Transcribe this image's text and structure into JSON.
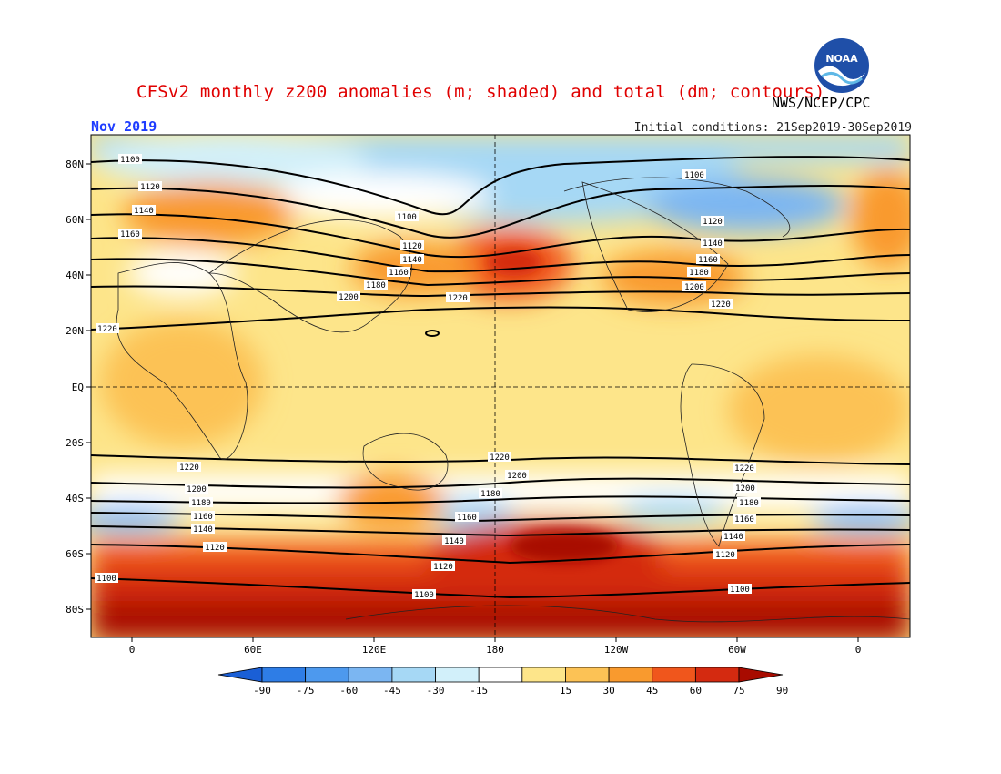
{
  "header": {
    "title": "CFSv2 monthly z200 anomalies (m; shaded) and total (dm; contours)",
    "agency": "NWS/NCEP/CPC",
    "valid_month": "Nov 2019",
    "initial_conditions": "Initial conditions: 21Sep2019-30Sep2019"
  },
  "logo": {
    "text": "NOAA",
    "icon": "noaa-logo-icon"
  },
  "map": {
    "lat_labels": [
      "80N",
      "60N",
      "40N",
      "20N",
      "EQ",
      "20S",
      "40S",
      "60S",
      "80S"
    ],
    "lon_labels": [
      "0",
      "60E",
      "120E",
      "180",
      "120W",
      "60W",
      "0"
    ],
    "contour_labels": [
      "1100",
      "1120",
      "1140",
      "1160",
      "1180",
      "1200",
      "1220"
    ]
  },
  "colorbar": {
    "ticks": [
      "-90",
      "-75",
      "-60",
      "-45",
      "-30",
      "-15",
      "15",
      "30",
      "45",
      "60",
      "75",
      "90"
    ],
    "colors": [
      "#1a5fd6",
      "#2e7de6",
      "#4d99ee",
      "#7bb6f2",
      "#a6d8f5",
      "#d2f0fa",
      "#ffffff",
      "#fde58a",
      "#fcc255",
      "#f99a2e",
      "#f0561c",
      "#d42a10",
      "#a80b00"
    ]
  }
}
